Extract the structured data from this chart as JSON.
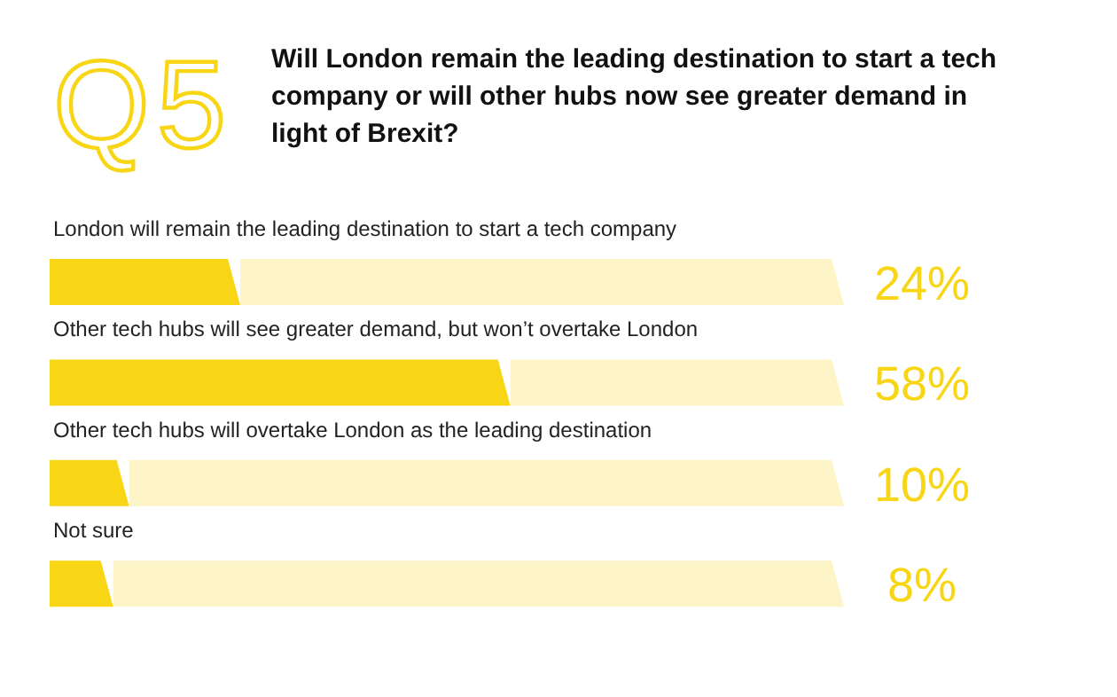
{
  "chart_data": {
    "type": "bar",
    "orientation": "horizontal",
    "stacked": true,
    "title": "Q5",
    "subtitle": "Will London remain the leading destination to start a tech company or will other hubs now see greater demand in light of Brexit?",
    "categories": [
      "London will remain the leading destination to start a tech company",
      "Other tech hubs will see greater demand, but won’t overtake London",
      "Other tech hubs will overtake London as the leading destination",
      "Not sure"
    ],
    "series": [
      {
        "color": "#f8d515",
        "values": [
          24,
          58,
          10,
          8
        ],
        "value_labels": [
          "24%",
          "58%",
          "10%",
          "8%"
        ]
      },
      {
        "color": "#fdf4c8",
        "values": [
          76,
          42,
          90,
          92
        ]
      }
    ],
    "xlim": [
      0,
      100
    ]
  }
}
